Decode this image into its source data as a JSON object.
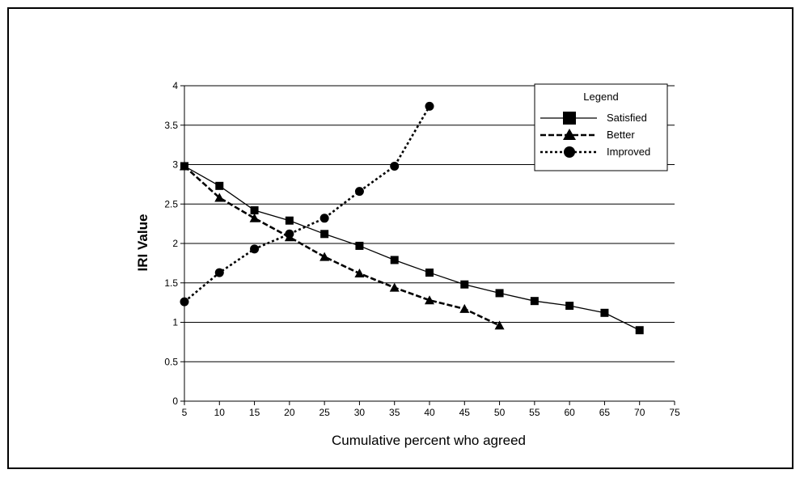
{
  "chart_data": {
    "type": "line",
    "title": "",
    "xlabel": "Cumulative percent who agreed",
    "ylabel": "IRI Value",
    "xlim": [
      5,
      75
    ],
    "ylim": [
      0,
      4
    ],
    "x_ticks": [
      "5",
      "10",
      "15",
      "20",
      "25",
      "30",
      "35",
      "40",
      "45",
      "50",
      "55",
      "60",
      "65",
      "70",
      "75"
    ],
    "y_ticks": [
      "0",
      "0.5",
      "1",
      "1.5",
      "2",
      "2.5",
      "3",
      "3.5",
      "4"
    ],
    "grid": "horizontal",
    "legend": {
      "title": "Legend",
      "placement": "top-right"
    },
    "series": [
      {
        "name": "Satisfied",
        "marker": "square",
        "line_style": "solid",
        "x": [
          5,
          10,
          15,
          20,
          25,
          30,
          35,
          40,
          45,
          50,
          55,
          60,
          65,
          70
        ],
        "values": [
          2.98,
          2.73,
          2.42,
          2.29,
          2.12,
          1.97,
          1.79,
          1.63,
          1.48,
          1.37,
          1.27,
          1.21,
          1.12,
          0.9
        ]
      },
      {
        "name": "Better",
        "marker": "triangle",
        "line_style": "dashed",
        "x": [
          5,
          10,
          15,
          20,
          25,
          30,
          35,
          40,
          45,
          50
        ],
        "values": [
          2.98,
          2.58,
          2.32,
          2.08,
          1.83,
          1.62,
          1.44,
          1.28,
          1.17,
          0.96
        ]
      },
      {
        "name": "Improved",
        "marker": "circle",
        "line_style": "dotted",
        "x": [
          5,
          10,
          15,
          20,
          25,
          30,
          35,
          40
        ],
        "values": [
          1.26,
          1.63,
          1.93,
          2.12,
          2.32,
          2.66,
          2.98,
          3.74
        ]
      }
    ]
  }
}
